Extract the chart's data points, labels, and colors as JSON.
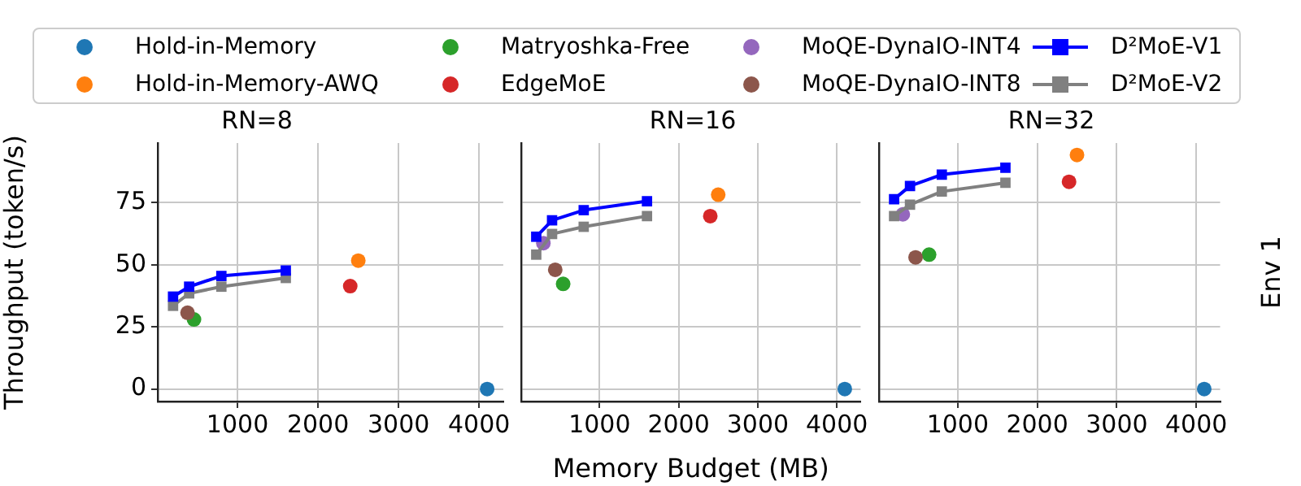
{
  "chart_data": [
    {
      "type": "scatter",
      "title": "RN=8",
      "ylabel": "Throughput (token/s)",
      "legend": "top",
      "marker": "circle",
      "grid": true,
      "xlim": [
        10,
        4300
      ],
      "xticks": [
        1000,
        2000,
        3000,
        4000
      ],
      "ylim": [
        -5,
        99
      ],
      "yticks": [
        0,
        25,
        50,
        75
      ],
      "series": [
        {
          "name": "Hold-in-Memory",
          "color": "#1f77b4",
          "x": [
            4100
          ],
          "values": [
            0
          ]
        },
        {
          "name": "Hold-in-Memory-AWQ",
          "color": "#ff7f0e",
          "x": [
            2500
          ],
          "values": [
            51.7
          ]
        },
        {
          "name": "Matryoshka-Free",
          "color": "#2ca02c",
          "x": [
            460
          ],
          "values": [
            28
          ]
        },
        {
          "name": "EdgeMoE",
          "color": "#d62728",
          "x": [
            2400
          ],
          "values": [
            41.4
          ]
        },
        {
          "name": "MoQE-DynaIO-INT4",
          "color": "#9467bd"
        },
        {
          "name": "MoQE-DynaIO-INT8",
          "color": "#8c564b",
          "x": [
            380
          ],
          "values": [
            30.7
          ]
        },
        {
          "name": "D²MoE-V1",
          "type": "line",
          "marker": "square",
          "color": "#0000ff",
          "x": [
            200,
            400,
            800,
            1600
          ],
          "values": [
            37.2,
            41.2,
            45.5,
            47.7
          ]
        },
        {
          "name": "D²MoE-V2",
          "type": "line",
          "marker": "square",
          "color": "#808080",
          "x": [
            200,
            400,
            800,
            1600
          ],
          "values": [
            33.5,
            38.5,
            41.2,
            44.7
          ]
        }
      ]
    },
    {
      "type": "scatter",
      "title": "RN=16",
      "xlabel": "Memory Budget (MB)",
      "marker": "circle",
      "grid": true,
      "tick_labels": "x",
      "xlim": [
        10,
        4300
      ],
      "xticks": [
        1000,
        2000,
        3000,
        4000
      ],
      "ylim": [
        -5,
        99
      ],
      "yticks": [
        0,
        25,
        50,
        75
      ],
      "series": [
        {
          "color": "#1f77b4",
          "x": [
            4100
          ],
          "values": [
            0
          ]
        },
        {
          "color": "#ff7f0e",
          "x": [
            2500
          ],
          "values": [
            78.2
          ]
        },
        {
          "color": "#2ca02c",
          "x": [
            540
          ],
          "values": [
            42.3
          ]
        },
        {
          "color": "#d62728",
          "x": [
            2400
          ],
          "values": [
            69.6
          ]
        },
        {
          "color": "#9467bd",
          "x": [
            290
          ],
          "values": [
            58.7
          ]
        },
        {
          "color": "#8c564b",
          "x": [
            440
          ],
          "values": [
            48
          ]
        },
        {
          "type": "line",
          "marker": "square",
          "color": "#0000ff",
          "x": [
            200,
            400,
            800,
            1600
          ],
          "values": [
            61.3,
            67.9,
            72,
            75.6
          ]
        },
        {
          "type": "line",
          "marker": "square",
          "color": "#808080",
          "x": [
            200,
            400,
            800,
            1600
          ],
          "values": [
            54.1,
            62.4,
            65.3,
            69.6
          ]
        }
      ]
    },
    {
      "type": "scatter",
      "title": "RN=32",
      "y2label": "Env 1",
      "marker": "circle",
      "grid": true,
      "tick_labels": "x",
      "xlim": [
        10,
        4300
      ],
      "xticks": [
        1000,
        2000,
        3000,
        4000
      ],
      "ylim": [
        -5,
        99
      ],
      "yticks": [
        0,
        25,
        50,
        75
      ],
      "series": [
        {
          "color": "#1f77b4",
          "x": [
            4100
          ],
          "values": [
            0
          ]
        },
        {
          "color": "#ff7f0e",
          "x": [
            2500
          ],
          "values": [
            94.2
          ]
        },
        {
          "color": "#2ca02c",
          "x": [
            640
          ],
          "values": [
            54.1
          ]
        },
        {
          "color": "#d62728",
          "x": [
            2400
          ],
          "values": [
            83.4
          ]
        },
        {
          "color": "#9467bd",
          "x": [
            310
          ],
          "values": [
            70.3
          ]
        },
        {
          "color": "#8c564b",
          "x": [
            470
          ],
          "values": [
            53
          ]
        },
        {
          "type": "line",
          "marker": "square",
          "color": "#0000ff",
          "x": [
            200,
            400,
            800,
            1600
          ],
          "values": [
            76.4,
            81.7,
            86.3,
            89.1
          ]
        },
        {
          "type": "line",
          "marker": "square",
          "color": "#808080",
          "x": [
            200,
            400,
            800,
            1600
          ],
          "values": [
            69.6,
            74.2,
            79.5,
            83
          ]
        }
      ]
    }
  ]
}
